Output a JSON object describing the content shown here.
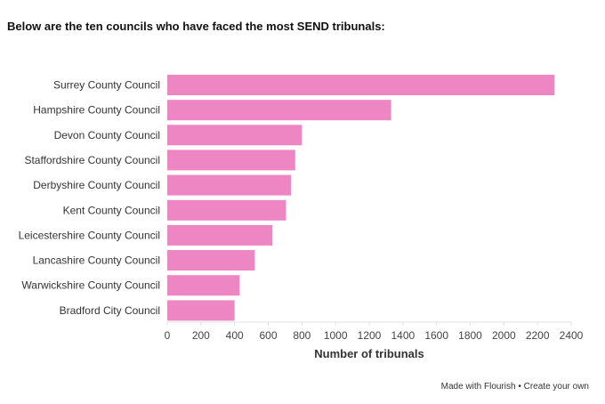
{
  "header": {
    "title": "Below are the ten councils who have faced the most SEND tribunals:"
  },
  "chart_data": {
    "type": "bar",
    "orientation": "horizontal",
    "categories": [
      "Surrey County Council",
      "Hampshire County Council",
      "Devon County Council",
      "Staffordshire County Council",
      "Derbyshire County Council",
      "Kent County Council",
      "Leicestershire County Council",
      "Lancashire County Council",
      "Warwickshire County Council",
      "Bradford City Council"
    ],
    "values": [
      2300,
      1330,
      800,
      760,
      735,
      705,
      625,
      520,
      430,
      400
    ],
    "xlabel": "Number of tribunals",
    "ylabel": "",
    "xlim": [
      0,
      2400
    ],
    "xticks": [
      0,
      200,
      400,
      600,
      800,
      1000,
      1200,
      1400,
      1600,
      1800,
      2000,
      2200,
      2400
    ],
    "color": "#ee86c4"
  },
  "footer": {
    "made_with": "Made with Flourish",
    "separator": " • ",
    "create": "Create your own"
  }
}
